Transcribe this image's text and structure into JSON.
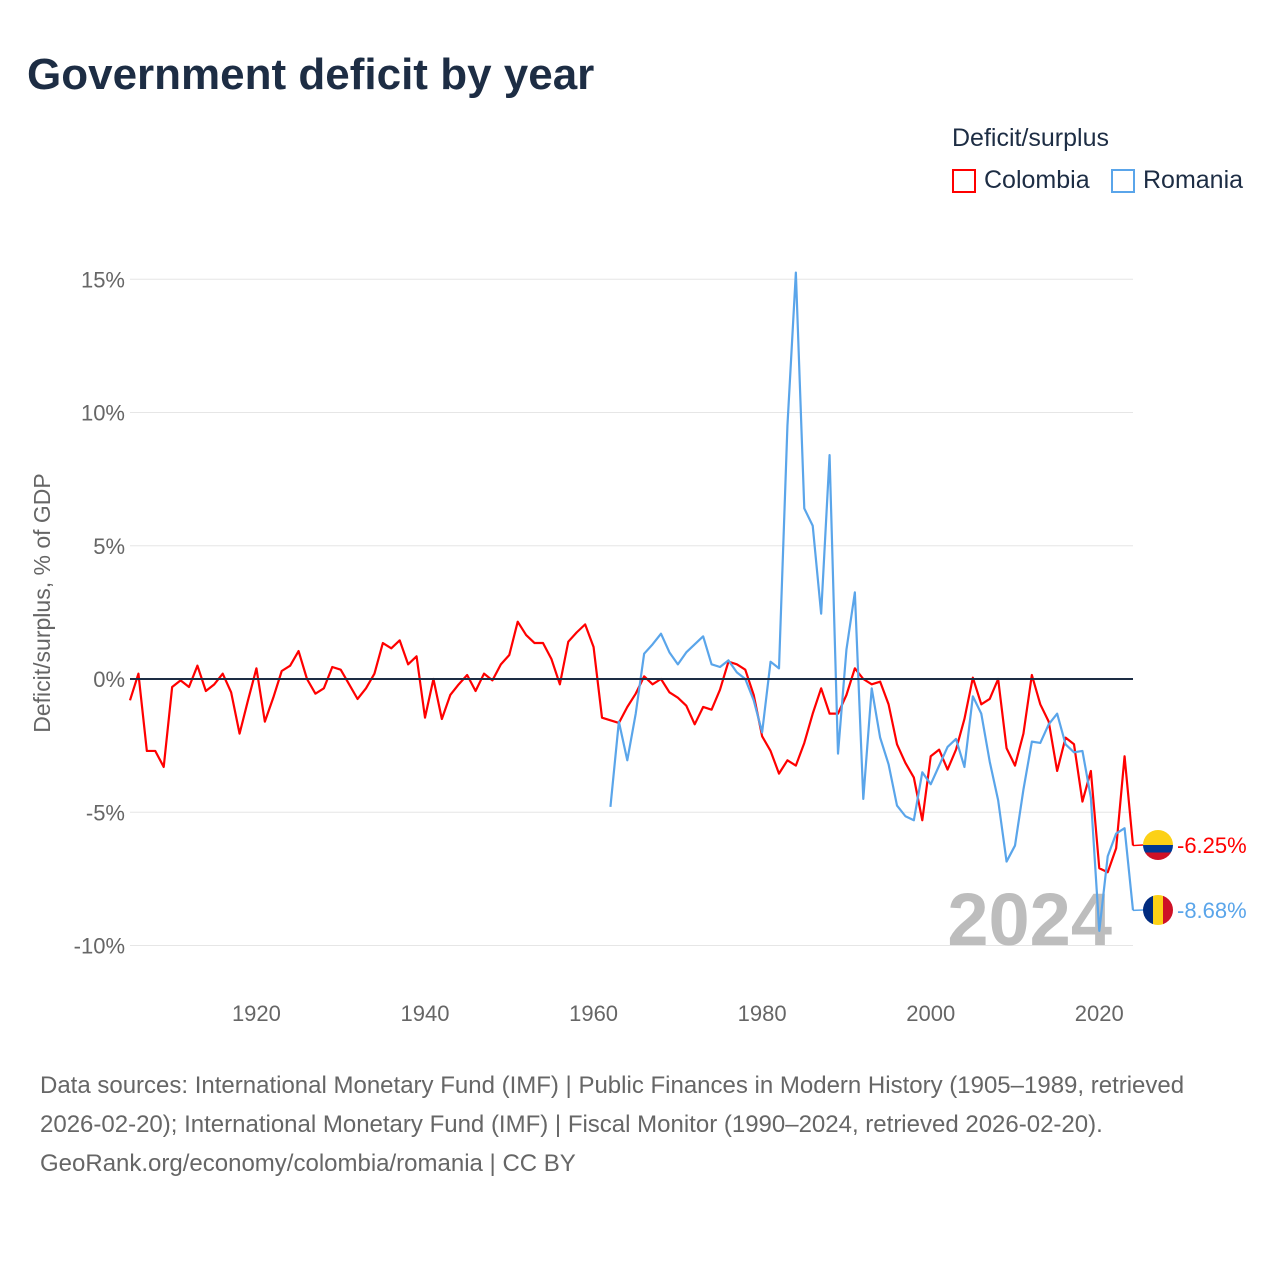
{
  "title": "Government deficit by year",
  "legend": {
    "title": "Deficit/surplus",
    "items": [
      {
        "name": "Colombia",
        "color": "#ff0000"
      },
      {
        "name": "Romania",
        "color": "#5aa5ea"
      }
    ]
  },
  "footer": {
    "sources": "Data sources: International Monetary Fund (IMF) | Public Finances in Modern History (1905–1989, retrieved 2026-02-20); International Monetary Fund (IMF) | Fiscal Monitor (1990–2024, retrieved 2026-02-20).",
    "credit": "GeoRank.org/economy/colombia/romania | CC BY"
  },
  "chart_data": {
    "type": "line",
    "title": "Government deficit by year",
    "ylabel": "Deficit/surplus, % of GDP",
    "xlabel": "",
    "xlim": [
      1905,
      2024
    ],
    "ylim": [
      -11,
      16
    ],
    "yticks": [
      15,
      10,
      5,
      0,
      -5,
      -10
    ],
    "ytick_labels": [
      "15%",
      "10%",
      "5%",
      "0%",
      "-5%",
      "-10%"
    ],
    "xticks": [
      1920,
      1940,
      1960,
      1980,
      2000,
      2020
    ],
    "xtick_labels": [
      "1920",
      "1940",
      "1960",
      "1980",
      "2000",
      "2020"
    ],
    "grid": true,
    "current_year_label": "2024",
    "series": [
      {
        "name": "Colombia",
        "color": "#ff0000",
        "start_year": 1905,
        "end_label": "-6.25%",
        "values": [
          -0.8,
          0.2,
          -2.7,
          -2.7,
          -3.3,
          -0.3,
          -0.05,
          -0.3,
          0.5,
          -0.45,
          -0.2,
          0.2,
          -0.5,
          -2.05,
          -0.8,
          0.4,
          -1.6,
          -0.7,
          0.3,
          0.5,
          1.05,
          0,
          -0.55,
          -0.35,
          0.45,
          0.35,
          -0.2,
          -0.75,
          -0.35,
          0.2,
          1.35,
          1.15,
          1.45,
          0.55,
          0.85,
          -1.45,
          0,
          -1.5,
          -0.6,
          -0.2,
          0.15,
          -0.45,
          0.2,
          -0.05,
          0.55,
          0.9,
          2.15,
          1.65,
          1.35,
          1.35,
          0.75,
          -0.2,
          1.4,
          1.75,
          2.05,
          1.2,
          -1.45,
          -1.55,
          -1.65,
          -1.05,
          -0.55,
          0.1,
          -0.2,
          0,
          -0.5,
          -0.7,
          -1.0,
          -1.7,
          -1.05,
          -1.15,
          -0.4,
          0.65,
          0.55,
          0.35,
          -0.6,
          -2.15,
          -2.7,
          -3.55,
          -3.05,
          -3.25,
          -2.4,
          -1.3,
          -0.35,
          -1.3,
          -1.3,
          -0.6,
          0.4,
          0,
          -0.2,
          -0.1,
          -0.95,
          -2.45,
          -3.15,
          -3.7,
          -5.3,
          -2.9,
          -2.65,
          -3.4,
          -2.65,
          -1.5,
          0.05,
          -0.95,
          -0.75,
          0,
          -2.6,
          -3.25,
          -2.05,
          0.15,
          -0.95,
          -1.6,
          -3.45,
          -2.2,
          -2.45,
          -4.6,
          -3.45,
          -7.1,
          -7.25,
          -6.35,
          -2.9,
          -6.25
        ]
      },
      {
        "name": "Romania",
        "color": "#5aa5ea",
        "start_year": 1962,
        "end_label": "-8.68%",
        "values": [
          -4.8,
          -1.6,
          -3.05,
          -1.3,
          0.95,
          1.3,
          1.7,
          1.0,
          0.55,
          1.0,
          1.3,
          1.6,
          0.55,
          0.45,
          0.7,
          0.25,
          0,
          -0.8,
          -2.0,
          0.65,
          0.4,
          9.5,
          15.25,
          6.4,
          5.75,
          2.45,
          8.4,
          -2.8,
          1.1,
          3.25,
          -4.5,
          -0.35,
          -2.2,
          -3.2,
          -4.75,
          -5.15,
          -5.3,
          -3.5,
          -3.95,
          -3.25,
          -2.55,
          -2.25,
          -3.3,
          -0.65,
          -1.3,
          -3.1,
          -4.55,
          -6.85,
          -6.25,
          -4.15,
          -2.35,
          -2.4,
          -1.7,
          -1.3,
          -2.45,
          -2.75,
          -2.7,
          -4.45,
          -9.45,
          -6.65,
          -5.8,
          -5.6,
          -8.68
        ]
      }
    ]
  }
}
